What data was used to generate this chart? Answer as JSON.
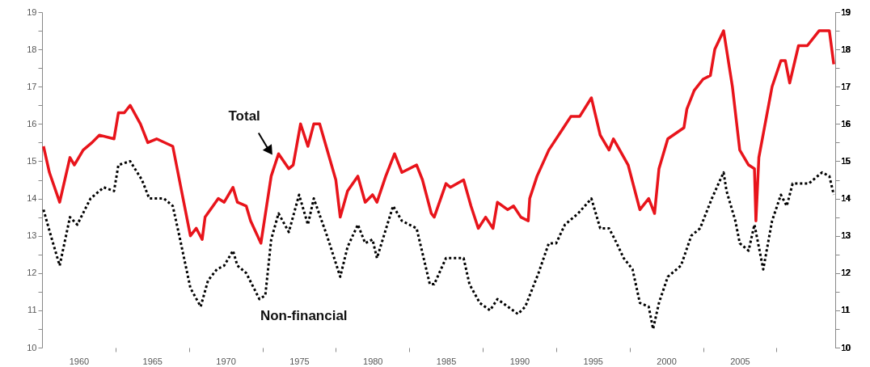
{
  "chart_data": {
    "type": "line",
    "xlim": [
      1957.5,
      2011.5
    ],
    "xticks": [
      1960,
      {
        "value": 1962.5,
        "label": null
      },
      1965,
      {
        "value": 1967.5,
        "label": null
      },
      1970,
      {
        "value": 1972.5,
        "label": null
      },
      1975,
      {
        "value": 1977.5,
        "label": null
      },
      1980,
      {
        "value": 1982.5,
        "label": null
      },
      1985,
      {
        "value": 1987.5,
        "label": null
      },
      1990,
      {
        "value": 1992.5,
        "label": null
      },
      1995,
      {
        "value": 1997.5,
        "label": null
      },
      2000,
      {
        "value": 2002.5,
        "label": null
      },
      2005,
      {
        "value": 2007.5,
        "label": null
      }
    ],
    "ylim": [
      10,
      19
    ],
    "yticks": [
      10,
      {
        "value": 10.5,
        "label": null
      },
      11,
      {
        "value": 11.5,
        "label": null
      },
      12,
      {
        "value": 12.5,
        "label": null
      },
      13,
      {
        "value": 13.5,
        "label": null
      },
      14,
      {
        "value": 14.5,
        "label": null
      },
      15,
      {
        "value": 15.5,
        "label": null
      },
      16,
      {
        "value": 16.5,
        "label": null
      },
      17,
      {
        "value": 17.5,
        "label": null
      },
      18,
      {
        "value": 18.5,
        "label": null
      },
      19
    ],
    "y2lim": [
      10,
      19
    ],
    "y2ticks": [
      10,
      {
        "value": 10.5,
        "label": null
      },
      11,
      {
        "value": 11.5,
        "label": null
      },
      12,
      {
        "value": 12.5,
        "label": null
      },
      13,
      {
        "value": 13.5,
        "label": null
      },
      14,
      {
        "value": 14.5,
        "label": null
      },
      15,
      {
        "value": 15.5,
        "label": null
      },
      16,
      {
        "value": 16.5,
        "label": null
      },
      17,
      {
        "value": 17.5,
        "label": null
      },
      18,
      {
        "value": 18.5,
        "label": null
      },
      19
    ],
    "grid": false,
    "marker": "none",
    "series": [
      {
        "name": "Total",
        "color": "#e8141b",
        "line_style": "solid",
        "x": [
          1957.6,
          1958.0,
          1958.7,
          1959.4,
          1959.7,
          1960.3,
          1960.9,
          1961.4,
          1962.4,
          1962.7,
          1963.1,
          1963.5,
          1964.2,
          1964.7,
          1965.3,
          1966.4,
          1967.6,
          1968.0,
          1968.4,
          1968.6,
          1969.5,
          1969.9,
          1970.5,
          1970.8,
          1971.4,
          1971.7,
          1972.4,
          1973.1,
          1973.6,
          1974.3,
          1974.6,
          1975.1,
          1975.6,
          1976.0,
          1976.4,
          1977.5,
          1977.8,
          1978.3,
          1979.0,
          1979.5,
          1980.0,
          1980.3,
          1980.9,
          1981.5,
          1982.0,
          1983.0,
          1983.4,
          1984.0,
          1984.2,
          1985.0,
          1985.3,
          1986.2,
          1986.7,
          1987.2,
          1987.7,
          1988.2,
          1988.5,
          1989.2,
          1989.6,
          1990.1,
          1990.6,
          1990.7,
          1991.2,
          1992.0,
          1993.0,
          1993.5,
          1994.1,
          1994.9,
          1995.5,
          1996.1,
          1996.4,
          1997.4,
          1998.2,
          1998.8,
          1999.2,
          1999.5,
          2000.1,
          2001.2,
          2001.4,
          2001.9,
          2002.5,
          2003.0,
          2003.3,
          2003.9,
          2004.5,
          2005.0,
          2005.6,
          2006.0,
          2006.1,
          2006.3,
          2007.2,
          2007.8,
          2008.1,
          2008.4,
          2009.0,
          2009.6,
          2010.4,
          2011.1,
          2011.4
        ],
        "values": [
          15.4,
          14.7,
          13.9,
          15.1,
          14.9,
          15.3,
          15.5,
          15.7,
          15.6,
          16.3,
          16.3,
          16.5,
          16.0,
          15.5,
          15.6,
          15.4,
          13.0,
          13.2,
          12.9,
          13.5,
          14.0,
          13.9,
          14.3,
          13.9,
          13.8,
          13.4,
          12.8,
          14.6,
          15.2,
          14.8,
          14.9,
          16.0,
          15.4,
          16.0,
          16.0,
          14.5,
          13.5,
          14.2,
          14.6,
          13.9,
          14.1,
          13.9,
          14.6,
          15.2,
          14.7,
          14.9,
          14.5,
          13.6,
          13.5,
          14.4,
          14.3,
          14.5,
          13.8,
          13.2,
          13.5,
          13.2,
          13.9,
          13.7,
          13.8,
          13.5,
          13.4,
          14.0,
          14.6,
          15.3,
          15.9,
          16.2,
          16.2,
          16.7,
          15.7,
          15.3,
          15.6,
          14.9,
          13.7,
          14.0,
          13.6,
          14.8,
          15.6,
          15.9,
          16.4,
          16.9,
          17.2,
          17.3,
          18.0,
          18.5,
          17.0,
          15.3,
          14.9,
          14.8,
          13.4,
          15.1,
          17.0,
          17.7,
          17.7,
          17.1,
          18.1,
          18.1,
          18.5,
          18.5,
          17.6
        ]
      },
      {
        "name": "Non-financial",
        "color": "#000000",
        "line_style": "dotted",
        "x": [
          1957.6,
          1958.1,
          1958.7,
          1959.4,
          1959.9,
          1960.8,
          1961.7,
          1962.4,
          1962.7,
          1963.5,
          1964.3,
          1964.8,
          1965.8,
          1966.4,
          1966.9,
          1967.6,
          1968.3,
          1968.8,
          1969.4,
          1969.9,
          1970.5,
          1970.8,
          1971.4,
          1972.3,
          1972.7,
          1973.1,
          1973.6,
          1974.3,
          1975.0,
          1975.6,
          1976.0,
          1976.9,
          1977.8,
          1978.3,
          1979.0,
          1979.5,
          1980.0,
          1980.3,
          1981.4,
          1982.0,
          1983.0,
          1983.9,
          1984.2,
          1985.0,
          1985.5,
          1986.2,
          1986.6,
          1987.3,
          1988.0,
          1988.5,
          1989.9,
          1990.4,
          1991.3,
          1992.0,
          1992.5,
          1993.1,
          1994.0,
          1994.9,
          1995.5,
          1996.1,
          1996.5,
          1997.1,
          1997.7,
          1998.2,
          1998.8,
          1999.1,
          1999.5,
          2000.1,
          2001.0,
          2001.7,
          2002.3,
          2002.6,
          2003.1,
          2003.9,
          2004.1,
          2004.7,
          2005.0,
          2005.6,
          2006.0,
          2006.6,
          2007.2,
          2007.8,
          2008.2,
          2008.6,
          2009.7,
          2010.6,
          2011.1,
          2011.4
        ],
        "values": [
          13.7,
          13.0,
          12.2,
          13.5,
          13.3,
          14.0,
          14.3,
          14.2,
          14.9,
          15.0,
          14.5,
          14.0,
          14.0,
          13.8,
          12.9,
          11.6,
          11.1,
          11.8,
          12.1,
          12.2,
          12.6,
          12.2,
          12.0,
          11.3,
          11.4,
          12.9,
          13.6,
          13.1,
          14.1,
          13.3,
          14.0,
          13.0,
          11.9,
          12.7,
          13.3,
          12.8,
          12.9,
          12.4,
          13.8,
          13.4,
          13.2,
          11.7,
          11.7,
          12.4,
          12.4,
          12.4,
          11.7,
          11.2,
          11.0,
          11.3,
          10.9,
          11.1,
          12.0,
          12.8,
          12.8,
          13.3,
          13.6,
          14.0,
          13.2,
          13.2,
          12.9,
          12.4,
          12.1,
          11.2,
          11.1,
          10.5,
          11.2,
          11.9,
          12.2,
          13.0,
          13.2,
          13.5,
          14.0,
          14.7,
          14.2,
          13.4,
          12.8,
          12.6,
          13.3,
          12.1,
          13.4,
          14.1,
          13.8,
          14.4,
          14.4,
          14.7,
          14.6,
          14.1
        ]
      }
    ]
  }
}
